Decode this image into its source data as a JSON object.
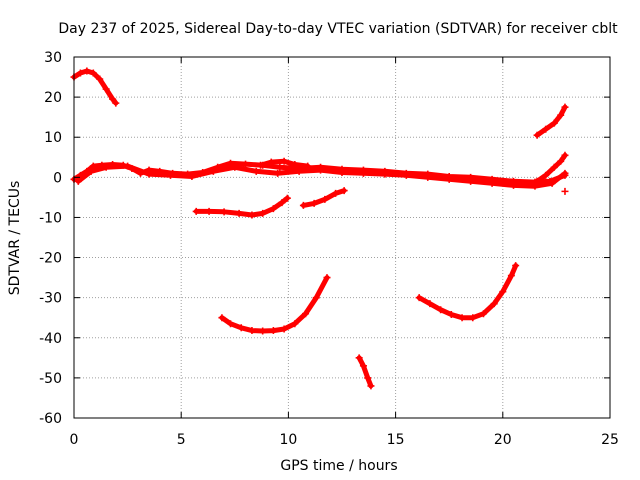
{
  "colors": {
    "series": "#ff0000",
    "frame": "#000000",
    "grid": "#a0a0a0",
    "background": "#ffffff"
  },
  "chart_data": {
    "type": "line",
    "title": "Day 237 of 2025, Sidereal Day-to-day VTEC variation (SDTVAR) for receiver cblt",
    "xlabel": "GPS time / hours",
    "ylabel": "SDTVAR / TECUs",
    "xlim": [
      0,
      25
    ],
    "ylim": [
      -60,
      30
    ],
    "xticks": [
      0,
      5,
      10,
      15,
      20,
      25
    ],
    "yticks": [
      -60,
      -50,
      -40,
      -30,
      -20,
      -10,
      0,
      10,
      20,
      30
    ],
    "grid": true,
    "marker": "plus",
    "series": [
      {
        "name": "arc-near-zero-main",
        "values": [
          [
            0.0,
            -0.5
          ],
          [
            0.3,
            0.5
          ],
          [
            0.6,
            1.5
          ],
          [
            0.9,
            2.8
          ],
          [
            1.3,
            3.0
          ],
          [
            1.8,
            3.2
          ],
          [
            2.3,
            3.0
          ],
          [
            2.7,
            2.2
          ],
          [
            3.1,
            1.0
          ],
          [
            3.5,
            1.8
          ],
          [
            4.0,
            1.5
          ],
          [
            4.6,
            1.0
          ],
          [
            5.3,
            0.8
          ],
          [
            6.0,
            1.2
          ],
          [
            6.7,
            2.5
          ],
          [
            7.3,
            3.5
          ],
          [
            8.0,
            3.3
          ],
          [
            8.8,
            3.0
          ],
          [
            9.6,
            2.5
          ],
          [
            10.5,
            2.2
          ],
          [
            11.5,
            2.5
          ],
          [
            12.5,
            2.0
          ],
          [
            13.5,
            1.8
          ],
          [
            14.5,
            1.5
          ],
          [
            15.5,
            1.0
          ],
          [
            16.5,
            0.8
          ],
          [
            17.5,
            0.2
          ],
          [
            18.5,
            0.0
          ],
          [
            19.5,
            -0.5
          ],
          [
            20.5,
            -1.0
          ],
          [
            21.5,
            -1.2
          ],
          [
            22.2,
            -1.0
          ],
          [
            22.9,
            0.5
          ]
        ]
      },
      {
        "name": "arc-near-zero-secondary",
        "values": [
          [
            0.2,
            -1.0
          ],
          [
            0.8,
            1.5
          ],
          [
            1.5,
            2.5
          ],
          [
            2.5,
            2.8
          ],
          [
            3.5,
            0.8
          ],
          [
            4.5,
            0.5
          ],
          [
            5.5,
            0.2
          ],
          [
            6.5,
            1.5
          ],
          [
            7.5,
            2.5
          ],
          [
            8.5,
            1.5
          ],
          [
            9.5,
            1.0
          ],
          [
            10.5,
            1.5
          ],
          [
            11.5,
            1.8
          ],
          [
            12.5,
            1.2
          ],
          [
            13.5,
            1.0
          ],
          [
            14.5,
            0.8
          ],
          [
            15.5,
            0.5
          ],
          [
            16.5,
            0.0
          ],
          [
            17.5,
            -0.5
          ],
          [
            18.5,
            -1.0
          ],
          [
            19.5,
            -1.5
          ],
          [
            20.5,
            -2.0
          ],
          [
            21.5,
            -2.2
          ],
          [
            22.3,
            -1.5
          ],
          [
            22.9,
            1.0
          ]
        ]
      },
      {
        "name": "arc-morning-bump",
        "values": [
          [
            8.7,
            3.0
          ],
          [
            9.2,
            3.8
          ],
          [
            9.8,
            4.0
          ],
          [
            10.3,
            3.2
          ],
          [
            10.9,
            2.8
          ]
        ]
      },
      {
        "name": "arc-evening-rise",
        "values": [
          [
            21.6,
            -1.0
          ],
          [
            22.0,
            0.5
          ],
          [
            22.4,
            2.5
          ],
          [
            22.7,
            4.0
          ],
          [
            22.9,
            5.5
          ]
        ]
      },
      {
        "name": "arc-start-high",
        "values": [
          [
            0.0,
            25.0
          ],
          [
            0.3,
            26.0
          ],
          [
            0.6,
            26.5
          ],
          [
            0.9,
            26.0
          ],
          [
            1.2,
            24.5
          ],
          [
            1.5,
            22.0
          ],
          [
            1.8,
            19.5
          ],
          [
            1.95,
            18.5
          ]
        ]
      },
      {
        "name": "arc-morning-low",
        "values": [
          [
            5.7,
            -8.5
          ],
          [
            6.3,
            -8.5
          ],
          [
            7.0,
            -8.6
          ],
          [
            7.7,
            -9.0
          ],
          [
            8.3,
            -9.4
          ],
          [
            8.8,
            -9.0
          ],
          [
            9.3,
            -7.8
          ],
          [
            9.7,
            -6.3
          ],
          [
            9.95,
            -5.2
          ]
        ]
      },
      {
        "name": "arc-midday-low",
        "values": [
          [
            10.7,
            -7.0
          ],
          [
            11.2,
            -6.5
          ],
          [
            11.7,
            -5.5
          ],
          [
            12.2,
            -4.0
          ],
          [
            12.6,
            -3.3
          ]
        ]
      },
      {
        "name": "arc-deep-1",
        "values": [
          [
            6.9,
            -35.0
          ],
          [
            7.3,
            -36.5
          ],
          [
            7.8,
            -37.5
          ],
          [
            8.3,
            -38.2
          ],
          [
            8.8,
            -38.3
          ],
          [
            9.3,
            -38.2
          ],
          [
            9.8,
            -37.8
          ],
          [
            10.3,
            -36.5
          ],
          [
            10.8,
            -34.0
          ],
          [
            11.3,
            -30.0
          ],
          [
            11.8,
            -25.0
          ]
        ]
      },
      {
        "name": "arc-deep-2",
        "values": [
          [
            13.3,
            -45.0
          ],
          [
            13.5,
            -47.0
          ],
          [
            13.7,
            -50.0
          ],
          [
            13.85,
            -52.0
          ]
        ]
      },
      {
        "name": "arc-deep-3",
        "values": [
          [
            16.1,
            -30.0
          ],
          [
            16.6,
            -31.5
          ],
          [
            17.1,
            -33.0
          ],
          [
            17.6,
            -34.2
          ],
          [
            18.1,
            -35.0
          ],
          [
            18.6,
            -35.0
          ],
          [
            19.1,
            -34.0
          ],
          [
            19.6,
            -31.5
          ],
          [
            20.0,
            -28.5
          ],
          [
            20.4,
            -24.5
          ],
          [
            20.6,
            -22.0
          ]
        ]
      },
      {
        "name": "arc-end-high",
        "values": [
          [
            21.6,
            10.5
          ],
          [
            22.0,
            12.0
          ],
          [
            22.4,
            13.5
          ],
          [
            22.7,
            15.5
          ],
          [
            22.9,
            17.5
          ]
        ]
      },
      {
        "name": "isolated-point",
        "values": [
          [
            22.9,
            -3.5
          ]
        ]
      }
    ]
  }
}
